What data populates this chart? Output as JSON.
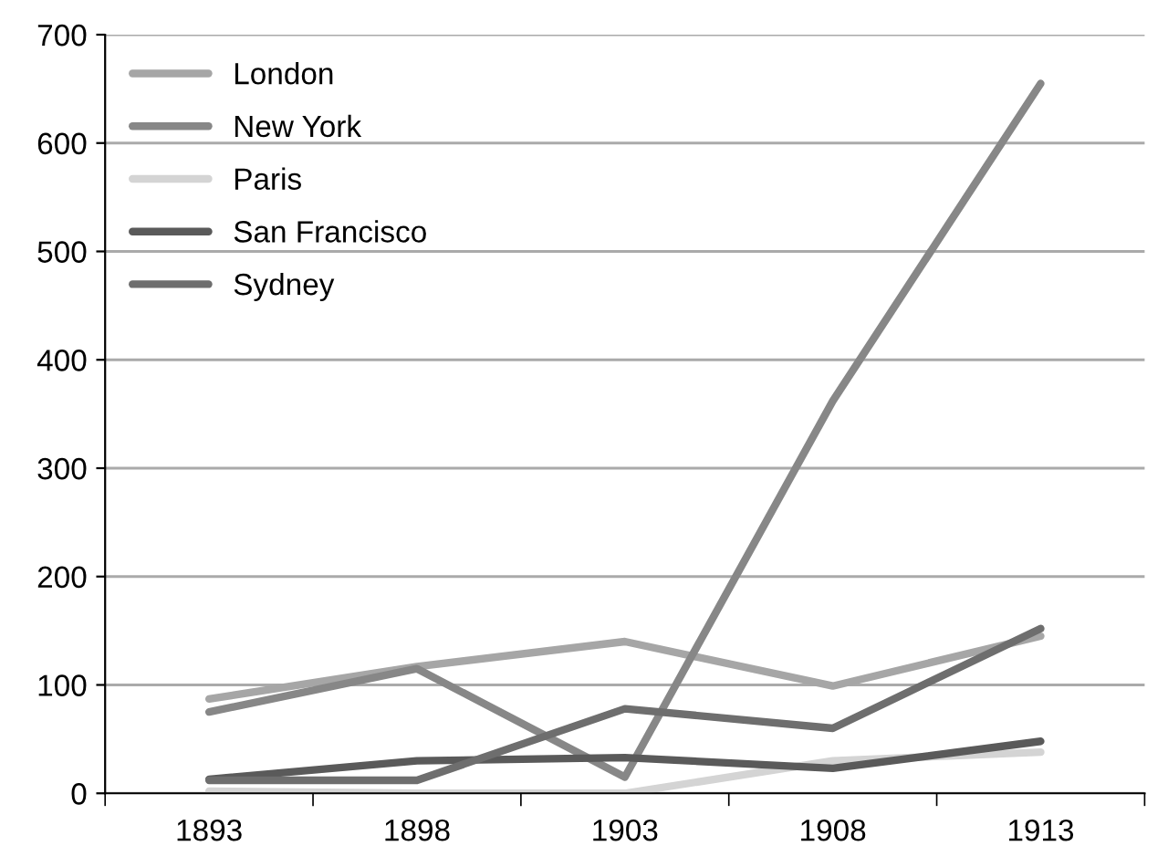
{
  "chart_data": {
    "type": "line",
    "categories": [
      "1893",
      "1898",
      "1903",
      "1908",
      "1913"
    ],
    "series": [
      {
        "name": "London",
        "color": "#a6a6a6",
        "values": [
          87,
          117,
          140,
          99,
          145
        ]
      },
      {
        "name": "New York",
        "color": "#878787",
        "values": [
          75,
          115,
          15,
          362,
          655
        ]
      },
      {
        "name": "Paris",
        "color": "#d4d4d4",
        "values": [
          2,
          0,
          0,
          30,
          38
        ]
      },
      {
        "name": "San Francisco",
        "color": "#5a5a5a",
        "values": [
          13,
          30,
          33,
          23,
          48
        ]
      },
      {
        "name": "Sydney",
        "color": "#6e6e6e",
        "values": [
          12,
          12,
          78,
          60,
          152
        ]
      }
    ],
    "ylim": [
      0,
      700
    ],
    "yticks": [
      0,
      100,
      200,
      300,
      400,
      500,
      600,
      700
    ],
    "grid": "y",
    "legend": "top left",
    "marker": "none",
    "line_style": "solid"
  }
}
